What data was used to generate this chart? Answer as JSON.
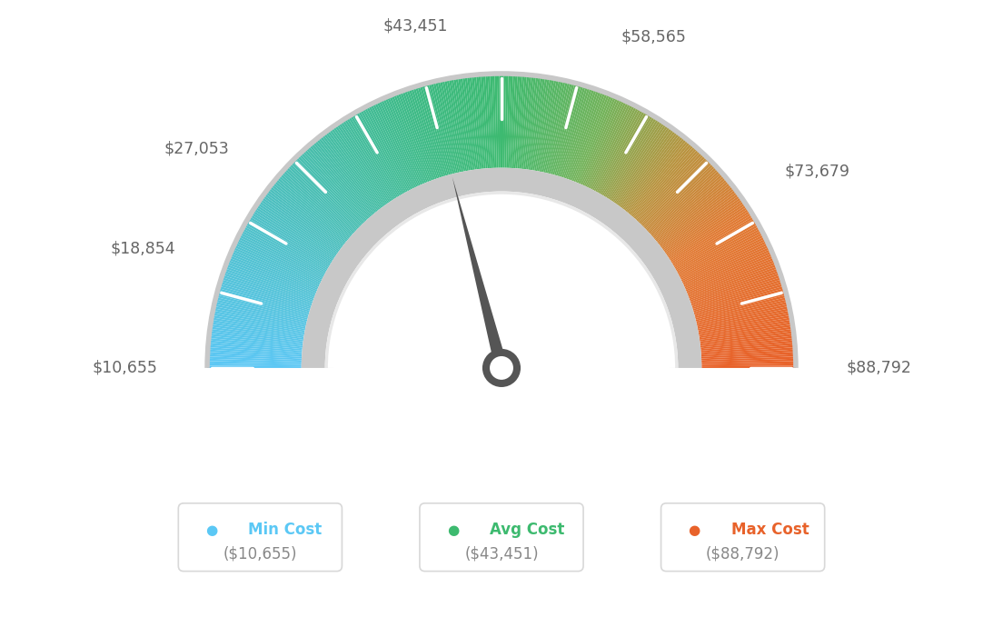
{
  "min_val": 10655,
  "max_val": 88792,
  "avg_val": 43451,
  "labels": [
    "$10,655",
    "$18,854",
    "$27,053",
    "$43,451",
    "$58,565",
    "$73,679",
    "$88,792"
  ],
  "label_values": [
    10655,
    18854,
    27053,
    43451,
    58565,
    73679,
    88792
  ],
  "min_color": "#5bc8f5",
  "avg_color": "#3dba6f",
  "max_color": "#e8622a",
  "needle_color": "#555555",
  "background_color": "#ffffff",
  "label_color": "#666666",
  "legend_border_color": "#d8d8d8",
  "gradient_colors": [
    [
      0.0,
      [
        0.36,
        0.78,
        0.96
      ]
    ],
    [
      0.3,
      [
        0.24,
        0.73,
        0.6
      ]
    ],
    [
      0.5,
      [
        0.24,
        0.73,
        0.44
      ]
    ],
    [
      0.65,
      [
        0.6,
        0.7,
        0.3
      ]
    ],
    [
      0.8,
      [
        0.85,
        0.55,
        0.2
      ]
    ],
    [
      1.0,
      [
        0.91,
        0.38,
        0.16
      ]
    ]
  ]
}
